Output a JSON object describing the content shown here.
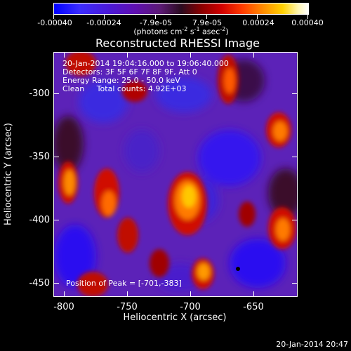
{
  "colorbar": {
    "tick_labels": [
      "-0.00040",
      "-0.00024",
      "-7.9e-05",
      "7.9e-05",
      "0.00024",
      "0.00040"
    ],
    "units_prefix": "(photons cm",
    "units_exp1": "-2",
    "units_mid1": " s",
    "units_exp2": "-1",
    "units_mid2": " asec",
    "units_exp3": "-2",
    "units_suffix": ")"
  },
  "title": "Reconstructed RHESSI Image",
  "info": {
    "time_range": "20-Jan-2014 19:04:16.000 to 19:06:40.000",
    "detectors": "Detectors: 3F 5F 6F 7F 8F 9F, Att 0",
    "energy": "Energy Range: 25.0 - 50.0 keV",
    "method": "Clean     Total counts: 4.92E+03",
    "peak": "Position of Peak = [-701,-383]"
  },
  "axes": {
    "xlabel": "Heliocentric X (arcsec)",
    "ylabel": "Heliocentric Y (arcsec)",
    "x_ticks": [
      "-800",
      "-750",
      "-700",
      "-650"
    ],
    "y_ticks": [
      "-300",
      "-350",
      "-400",
      "-450"
    ]
  },
  "footer": "20-Jan-2014 20:47"
}
